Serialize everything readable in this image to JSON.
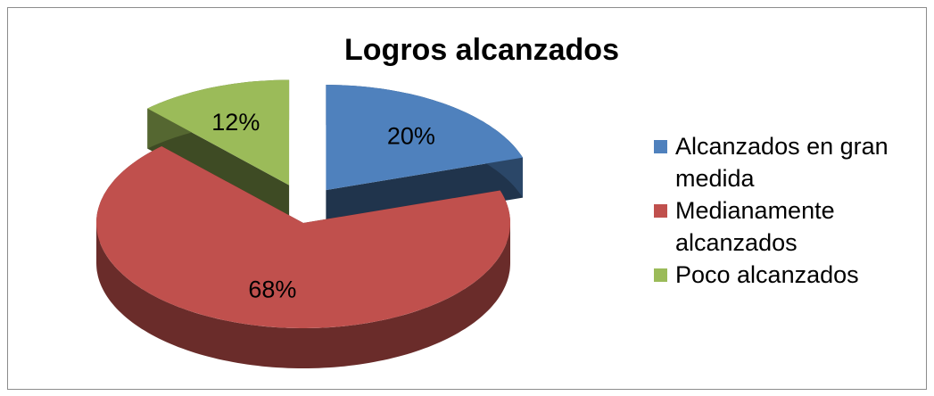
{
  "chart_data": {
    "type": "pie",
    "title": "Logros alcanzados",
    "categories": [
      "Alcanzados en gran medida",
      "Medianamente alcanzados",
      "Poco alcanzados"
    ],
    "values": [
      20,
      68,
      12
    ],
    "value_labels": [
      "20%",
      "68%",
      "12%"
    ],
    "colors": [
      "#4f81bd",
      "#c0504d",
      "#9bbb59"
    ],
    "legend": "right"
  }
}
